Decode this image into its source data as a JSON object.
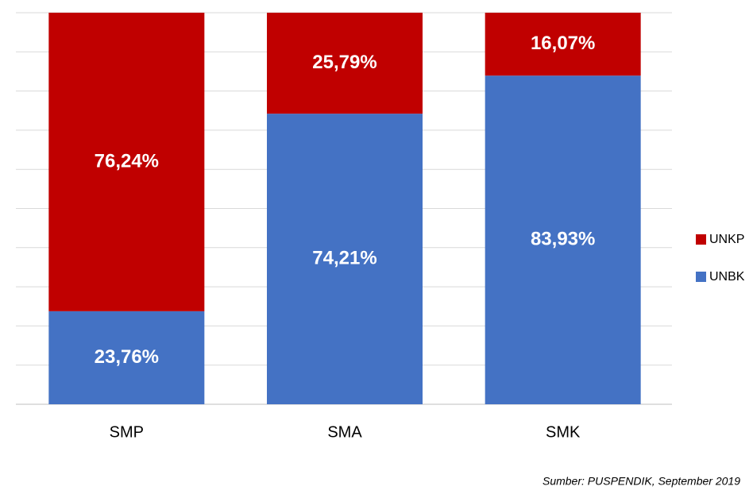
{
  "chart_data": {
    "type": "stacked_bar",
    "categories": [
      "SMP",
      "SMA",
      "SMK"
    ],
    "series": [
      {
        "name": "UNBK",
        "color": "#4472c4",
        "values": [
          23.76,
          74.21,
          83.93
        ],
        "value_labels": [
          "23,76%",
          "74,21%",
          "83,93%"
        ]
      },
      {
        "name": "UNKP",
        "color": "#c00000",
        "values": [
          76.24,
          25.79,
          16.07
        ],
        "value_labels": [
          "76,24%",
          "25,79%",
          "16,07%"
        ]
      }
    ],
    "ylim": [
      0,
      100
    ],
    "yticks": [
      0,
      10,
      20,
      30,
      40,
      50,
      60,
      70,
      80,
      90,
      100
    ],
    "grid": true,
    "legend": "right",
    "annotation": "Sumber:  PUSPENDIK, September 2019"
  }
}
